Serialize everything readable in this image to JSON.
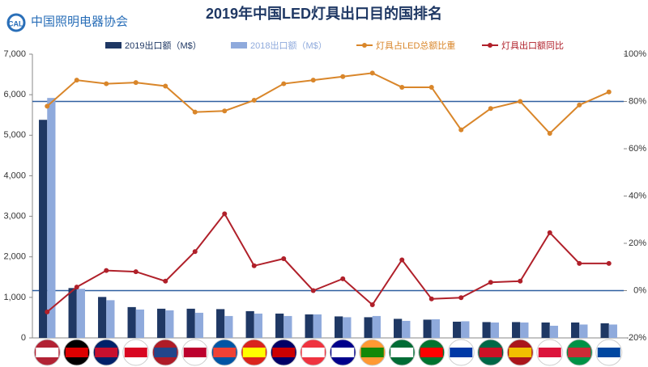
{
  "logo": {
    "mark": "CALI",
    "text": "中国照明电器协会"
  },
  "chart_data": {
    "type": "bar",
    "title": "2019年中国LED灯具出口目的国排名",
    "categories": [
      null,
      null,
      null,
      null,
      null,
      null,
      null,
      null,
      null,
      null,
      null,
      null,
      null,
      null,
      null,
      null,
      null,
      null,
      null,
      null
    ],
    "series": [
      {
        "name": "2019出口额（M$）",
        "type": "bar",
        "color": "#1f3864",
        "values": [
          5380,
          1230,
          1010,
          760,
          720,
          720,
          710,
          660,
          600,
          580,
          530,
          510,
          470,
          450,
          400,
          390,
          390,
          380,
          380,
          360
        ]
      },
      {
        "name": "2018出口额（M$）",
        "type": "bar",
        "color": "#8faadc",
        "values": [
          5920,
          1210,
          930,
          700,
          680,
          620,
          540,
          600,
          540,
          580,
          510,
          540,
          420,
          460,
          410,
          380,
          380,
          300,
          330,
          330
        ]
      },
      {
        "name": "灯具占LED总额比重",
        "type": "line",
        "axis": "y2",
        "color": "#d9862a",
        "values": [
          78,
          89,
          87.5,
          88,
          86.5,
          75.5,
          76,
          80.5,
          87.5,
          89,
          90.5,
          92,
          86,
          86,
          68,
          77,
          80,
          66.5,
          78.5,
          84
        ]
      },
      {
        "name": "灯具出口额同比",
        "type": "line",
        "axis": "y2",
        "color": "#b0202a",
        "values": [
          -9,
          1.5,
          8.5,
          8,
          4,
          16.5,
          32.5,
          10.5,
          13.5,
          0,
          5,
          -6,
          13,
          -3.5,
          -3,
          3.5,
          4,
          24.5,
          11.5,
          11.5
        ]
      }
    ],
    "ylim": [
      0,
      7000
    ],
    "yticks": [
      0,
      {
        "value": 1000,
        "label": "1,000"
      },
      {
        "value": 2000,
        "label": "2,000"
      },
      {
        "value": 3000,
        "label": "3,000"
      },
      {
        "value": 4000,
        "label": "4,000"
      },
      {
        "value": 5000,
        "label": "5,000"
      },
      {
        "value": 6000,
        "label": "6,000"
      },
      {
        "value": 7000,
        "label": "7,000"
      }
    ],
    "y2lim": [
      -20,
      100
    ],
    "y2ticks": [
      {
        "value": -20,
        "label": "-20%"
      },
      {
        "value": 0,
        "label": "0%"
      },
      {
        "value": 20,
        "label": "20%"
      },
      {
        "value": 40,
        "label": "40%"
      },
      {
        "value": 60,
        "label": "60%"
      },
      {
        "value": 80,
        "label": "80%"
      },
      {
        "value": 100,
        "label": "100%"
      }
    ],
    "y2_reference_lines": [
      0,
      80
    ]
  }
}
